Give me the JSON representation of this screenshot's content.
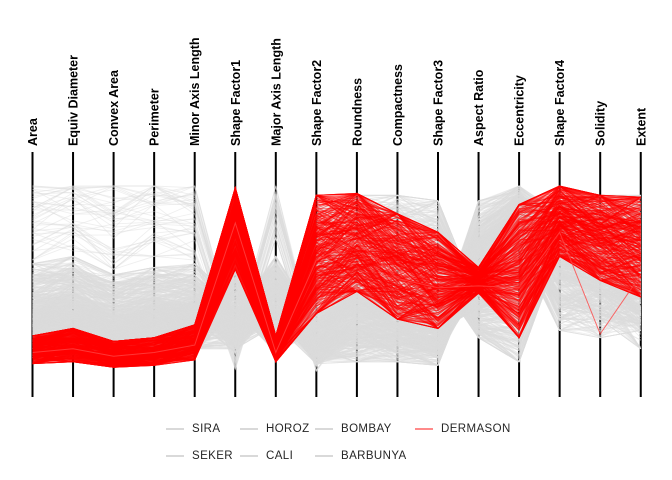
{
  "chart_data": {
    "type": "parallel-coordinates",
    "title": "",
    "axes": [
      "Area",
      "Equiv Diameter",
      "Convex Area",
      "Perimeter",
      "Minor Axis Length",
      "Shape Factor1",
      "Major Axis Length",
      "Shape Factor2",
      "Roundness",
      "Compactness",
      "Shape Factor3",
      "Aspect Ratio",
      "Eccentricity",
      "Shape Factor4",
      "Solidity",
      "Extent"
    ],
    "axis_slugs": [
      "area",
      "equiv-diameter",
      "convex-area",
      "perimeter",
      "minor-axis-length",
      "shape-factor1",
      "major-axis-length",
      "shape-factor2",
      "roundness",
      "compactness",
      "shape-factor3",
      "aspect-ratio",
      "eccentricity",
      "shape-factor4",
      "solidity",
      "extent"
    ],
    "value_scale": "per-axis normalized 0-1; axes have no numeric tick labels",
    "grid": false,
    "colors": {
      "highlight": "#ff0000",
      "base_gray": "#dcdcdc",
      "axis": "#000000",
      "background": "#ffffff",
      "legend_text": "#262626",
      "legend_gray_swatch": "#d9d9d9",
      "legend_red_swatch": "#ff8a8a"
    },
    "series": [
      {
        "name": "SIRA",
        "color": "#dcdcdc",
        "opacity": 0.45,
        "width": 0.9,
        "count": 240,
        "band": [
          [
            0.07,
            0.33
          ],
          [
            0.09,
            0.36
          ],
          [
            0.06,
            0.3
          ],
          [
            0.07,
            0.32
          ],
          [
            0.1,
            0.38
          ],
          [
            0.33,
            0.72
          ],
          [
            0.1,
            0.33
          ],
          [
            0.22,
            0.68
          ],
          [
            0.32,
            0.72
          ],
          [
            0.28,
            0.68
          ],
          [
            0.22,
            0.62
          ],
          [
            0.34,
            0.58
          ],
          [
            0.38,
            0.78
          ],
          [
            0.5,
            0.95
          ],
          [
            0.42,
            0.9
          ],
          [
            0.3,
            0.85
          ]
        ]
      },
      {
        "name": "SEKER",
        "color": "#dcdcdc",
        "opacity": 0.45,
        "width": 0.9,
        "count": 200,
        "band": [
          [
            0.08,
            0.28
          ],
          [
            0.1,
            0.32
          ],
          [
            0.07,
            0.26
          ],
          [
            0.08,
            0.28
          ],
          [
            0.12,
            0.34
          ],
          [
            0.45,
            0.85
          ],
          [
            0.07,
            0.26
          ],
          [
            0.42,
            0.88
          ],
          [
            0.55,
            0.95
          ],
          [
            0.55,
            0.95
          ],
          [
            0.5,
            0.92
          ],
          [
            0.18,
            0.38
          ],
          [
            0.05,
            0.45
          ],
          [
            0.65,
            1.0
          ],
          [
            0.5,
            0.95
          ],
          [
            0.5,
            0.95
          ]
        ]
      },
      {
        "name": "HOROZ",
        "color": "#dcdcdc",
        "opacity": 0.45,
        "width": 0.9,
        "count": 190,
        "band": [
          [
            0.12,
            0.38
          ],
          [
            0.15,
            0.42
          ],
          [
            0.1,
            0.35
          ],
          [
            0.13,
            0.4
          ],
          [
            0.12,
            0.36
          ],
          [
            0.12,
            0.42
          ],
          [
            0.25,
            0.55
          ],
          [
            0.04,
            0.32
          ],
          [
            0.05,
            0.38
          ],
          [
            0.05,
            0.33
          ],
          [
            0.03,
            0.28
          ],
          [
            0.58,
            0.92
          ],
          [
            0.82,
            1.0
          ],
          [
            0.28,
            0.85
          ],
          [
            0.28,
            0.8
          ],
          [
            0.12,
            0.7
          ]
        ]
      },
      {
        "name": "CALI",
        "color": "#dcdcdc",
        "opacity": 0.45,
        "width": 0.9,
        "count": 150,
        "band": [
          [
            0.25,
            0.52
          ],
          [
            0.3,
            0.56
          ],
          [
            0.22,
            0.48
          ],
          [
            0.26,
            0.52
          ],
          [
            0.28,
            0.52
          ],
          [
            0.1,
            0.32
          ],
          [
            0.35,
            0.62
          ],
          [
            0.03,
            0.26
          ],
          [
            0.18,
            0.48
          ],
          [
            0.1,
            0.38
          ],
          [
            0.07,
            0.32
          ],
          [
            0.48,
            0.78
          ],
          [
            0.72,
            0.95
          ],
          [
            0.35,
            0.85
          ],
          [
            0.3,
            0.82
          ],
          [
            0.25,
            0.8
          ]
        ]
      },
      {
        "name": "BARBUNYA",
        "color": "#dcdcdc",
        "opacity": 0.45,
        "width": 0.9,
        "count": 130,
        "band": [
          [
            0.24,
            0.58
          ],
          [
            0.28,
            0.62
          ],
          [
            0.2,
            0.52
          ],
          [
            0.25,
            0.56
          ],
          [
            0.3,
            0.58
          ],
          [
            0.15,
            0.38
          ],
          [
            0.3,
            0.58
          ],
          [
            0.06,
            0.3
          ],
          [
            0.08,
            0.42
          ],
          [
            0.14,
            0.44
          ],
          [
            0.1,
            0.38
          ],
          [
            0.44,
            0.72
          ],
          [
            0.66,
            0.92
          ],
          [
            0.22,
            0.78
          ],
          [
            0.18,
            0.68
          ],
          [
            0.22,
            0.85
          ]
        ]
      },
      {
        "name": "BOMBAY",
        "color": "#dcdcdc",
        "opacity": 0.45,
        "width": 0.9,
        "count": 45,
        "band": [
          [
            0.6,
            1.0
          ],
          [
            0.65,
            1.0
          ],
          [
            0.55,
            1.0
          ],
          [
            0.62,
            1.0
          ],
          [
            0.6,
            1.0
          ],
          [
            0.01,
            0.18
          ],
          [
            0.72,
            1.0
          ],
          [
            0.0,
            0.13
          ],
          [
            0.28,
            0.58
          ],
          [
            0.18,
            0.48
          ],
          [
            0.13,
            0.38
          ],
          [
            0.46,
            0.7
          ],
          [
            0.68,
            0.9
          ],
          [
            0.55,
            0.95
          ],
          [
            0.48,
            0.92
          ],
          [
            0.42,
            0.88
          ]
        ]
      },
      {
        "name": "DERMASON",
        "color": "#ff0000",
        "opacity": 0.5,
        "width": 1.0,
        "count": 300,
        "band": [
          [
            0.04,
            0.19
          ],
          [
            0.05,
            0.23
          ],
          [
            0.02,
            0.16
          ],
          [
            0.03,
            0.18
          ],
          [
            0.06,
            0.25
          ],
          [
            0.55,
            0.99
          ],
          [
            0.05,
            0.19
          ],
          [
            0.31,
            0.95
          ],
          [
            0.43,
            0.96
          ],
          [
            0.28,
            0.85
          ],
          [
            0.23,
            0.75
          ],
          [
            0.42,
            0.56
          ],
          [
            0.18,
            0.9
          ],
          [
            0.62,
            1.0
          ],
          [
            0.49,
            0.95
          ],
          [
            0.4,
            0.94
          ]
        ]
      }
    ],
    "outliers": [
      {
        "series": "DERMASON",
        "color": "#ff4444",
        "opacity": 0.8,
        "values": [
          0.1,
          0.12,
          0.08,
          0.1,
          0.14,
          0.8,
          0.1,
          0.6,
          0.7,
          0.5,
          0.45,
          0.46,
          0.45,
          0.75,
          0.2,
          0.52
        ]
      }
    ],
    "legend": {
      "position": "bottom",
      "rows": [
        [
          "SIRA",
          "HOROZ",
          "BOMBAY",
          "DERMASON"
        ],
        [
          "SEKER",
          "CALI",
          "BARBUNYA"
        ]
      ]
    }
  }
}
